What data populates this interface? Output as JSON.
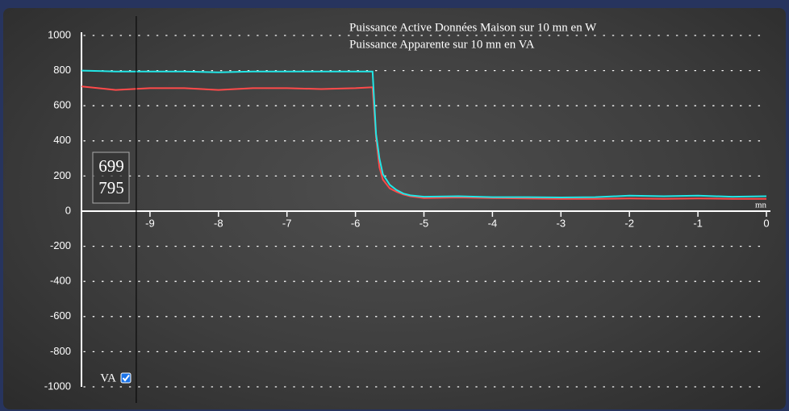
{
  "chart_data": {
    "type": "line",
    "x_label": "mn",
    "x": [
      -10,
      -9.5,
      -9,
      -8.5,
      -8,
      -7.5,
      -7,
      -6.5,
      -6,
      -5.75,
      -5.7,
      -5.65,
      -5.6,
      -5.5,
      -5.4,
      -5.3,
      -5.2,
      -5,
      -4.5,
      -4,
      -3.5,
      -3,
      -2.5,
      -2,
      -1.5,
      -1,
      -0.5,
      0
    ],
    "series": [
      {
        "name": "Puissance Active Données Maison sur 10 mn en W",
        "color": "#ff4a4a",
        "values": [
          710,
          690,
          700,
          700,
          690,
          700,
          700,
          695,
          700,
          705,
          420,
          250,
          180,
          130,
          110,
          95,
          85,
          75,
          78,
          75,
          72,
          70,
          70,
          72,
          70,
          72,
          70,
          70
        ]
      },
      {
        "name": "Puissance Apparente sur 10 mn en VA",
        "color": "#22e6e6",
        "values": [
          800,
          795,
          795,
          795,
          790,
          795,
          795,
          795,
          795,
          795,
          440,
          300,
          210,
          150,
          120,
          100,
          90,
          82,
          85,
          80,
          80,
          78,
          80,
          88,
          85,
          88,
          82,
          85
        ]
      }
    ],
    "xlim": [
      -10,
      0
    ],
    "xticks": [
      -9,
      -8,
      -7,
      -6,
      -5,
      -4,
      -3,
      -2,
      -1,
      0
    ],
    "ylim": [
      -1000,
      1000
    ],
    "yticks": [
      -1000,
      -800,
      -600,
      -400,
      -200,
      0,
      200,
      400,
      600,
      800,
      1000
    ],
    "grid": true,
    "cursor_x": -9.2,
    "readout": [
      699,
      795
    ],
    "toggle": {
      "label": "VA",
      "checked": true
    }
  }
}
